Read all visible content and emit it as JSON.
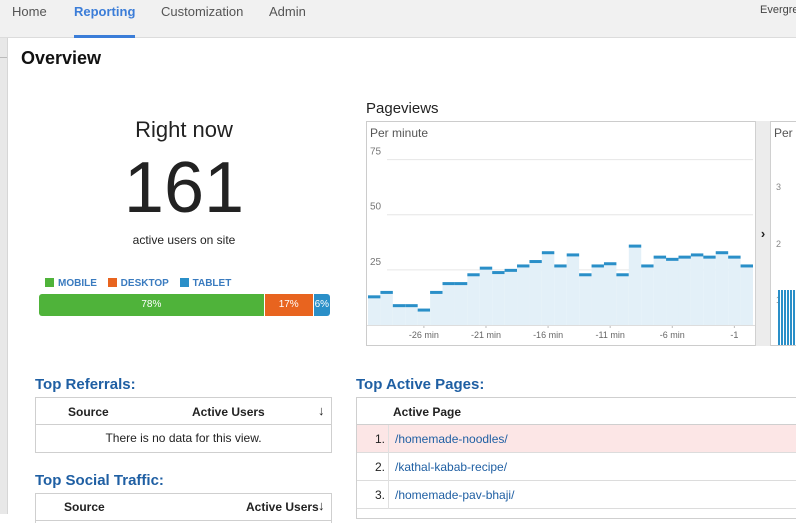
{
  "nav": {
    "tabs": [
      {
        "label": "Home"
      },
      {
        "label": "Reporting"
      },
      {
        "label": "Customization"
      },
      {
        "label": "Admin"
      }
    ],
    "active_tab": "Reporting",
    "account": "Evergreen"
  },
  "page": {
    "title": "Overview"
  },
  "right_now": {
    "title": "Right now",
    "count": "161",
    "subtitle": "active users on site",
    "legend": [
      "MOBILE",
      "DESKTOP",
      "TABLET"
    ],
    "segments": [
      {
        "label": "78%",
        "value": 78,
        "color": "#4fb33a"
      },
      {
        "label": "17%",
        "value": 17,
        "color": "#e8641f"
      },
      {
        "label": "6%",
        "value": 6,
        "color": "#2a8fc8"
      }
    ]
  },
  "pageviews": {
    "title": "Pageviews",
    "per_label": "Per minute",
    "second_per_label": "Per second",
    "second_ticks": [
      "3",
      "2",
      "1"
    ]
  },
  "chart_data": {
    "type": "bar",
    "title": "Pageviews",
    "subtitle": "Per minute",
    "ylim": [
      0,
      100
    ],
    "yticks": [
      25,
      50,
      75
    ],
    "xticks": [
      "-26 min",
      "-21 min",
      "-16 min",
      "-11 min",
      "-6 min",
      "-1"
    ],
    "minutes": [
      -30,
      -29,
      -28,
      -27,
      -26,
      -25,
      -24,
      -23,
      -22,
      -21,
      -20,
      -19,
      -18,
      -17,
      -16,
      -15,
      -14,
      -13,
      -12,
      -11,
      -10,
      -9,
      -8,
      -7,
      -6,
      -5,
      -4,
      -3,
      -2,
      -1,
      0
    ],
    "values": [
      13,
      15,
      9,
      9,
      7,
      15,
      19,
      19,
      23,
      26,
      24,
      25,
      27,
      29,
      33,
      27,
      32,
      23,
      27,
      28,
      23,
      36,
      27,
      31,
      30,
      31,
      32,
      31,
      33,
      31,
      27
    ],
    "grid": true
  },
  "referrals": {
    "title": "Top Referrals:",
    "col_source": "Source",
    "col_users": "Active Users",
    "empty": "There is no data for this view."
  },
  "social": {
    "title": "Top Social Traffic:",
    "col_source": "Source",
    "col_users": "Active Users"
  },
  "active_pages": {
    "title": "Top Active Pages:",
    "col_page": "Active Page",
    "rows": [
      {
        "num": "1.",
        "path": "/homemade-noodles/"
      },
      {
        "num": "2.",
        "path": "/kathal-kabab-recipe/"
      },
      {
        "num": "3.",
        "path": "/homemade-pav-bhaji/"
      }
    ]
  }
}
